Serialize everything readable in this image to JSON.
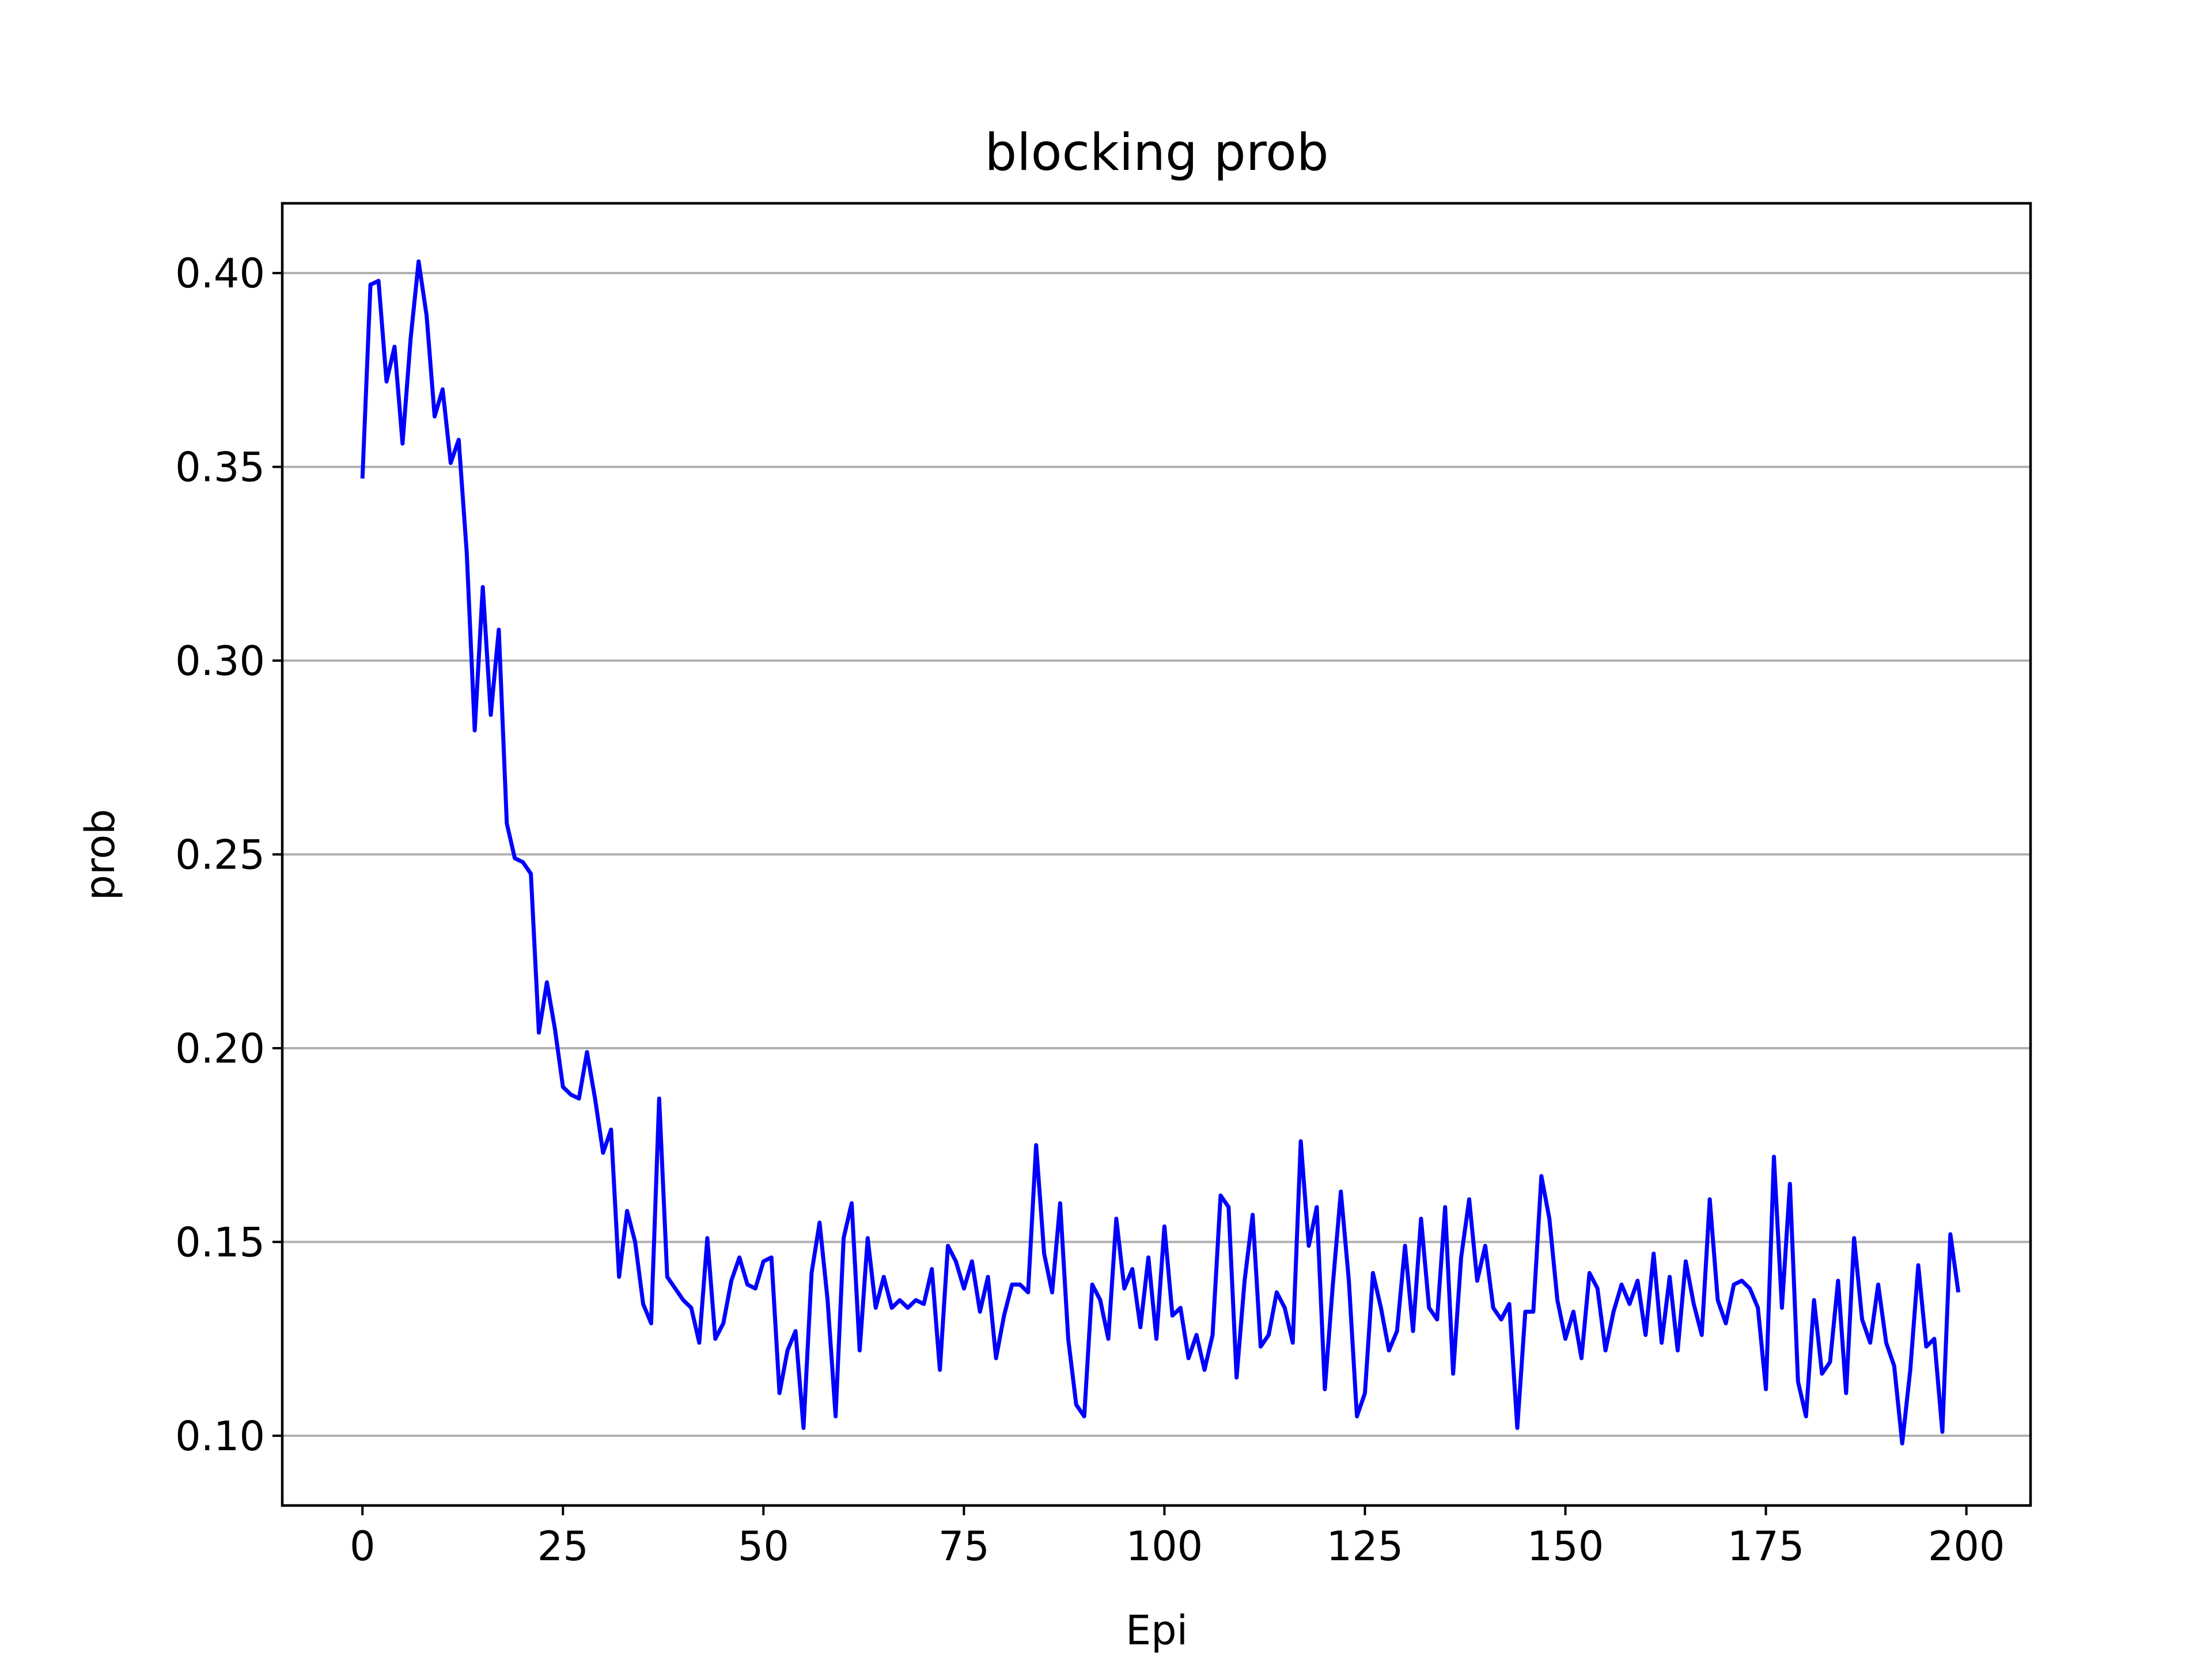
{
  "chart_data": {
    "type": "line",
    "title": "blocking prob",
    "xlabel": "Epi",
    "ylabel": "prob",
    "xlim": [
      -10,
      208
    ],
    "ylim": [
      0.082,
      0.418
    ],
    "x_ticks": [
      0,
      25,
      50,
      75,
      100,
      125,
      150,
      175,
      200
    ],
    "x_tick_labels": [
      "0",
      "25",
      "50",
      "75",
      "100",
      "125",
      "150",
      "175",
      "200"
    ],
    "y_ticks": [
      0.1,
      0.15,
      0.2,
      0.25,
      0.3,
      0.35,
      0.4
    ],
    "y_tick_labels": [
      "0.10",
      "0.15",
      "0.20",
      "0.25",
      "0.30",
      "0.35",
      "0.40"
    ],
    "grid": "horizontal",
    "series": [
      {
        "color": "#0000ff",
        "x": [
          0,
          1,
          2,
          3,
          4,
          5,
          6,
          7,
          8,
          9,
          10,
          11,
          12,
          13,
          14,
          15,
          16,
          17,
          18,
          19,
          20,
          21,
          22,
          23,
          24,
          25,
          26,
          27,
          28,
          29,
          30,
          31,
          32,
          33,
          34,
          35,
          36,
          37,
          38,
          39,
          40,
          41,
          42,
          43,
          44,
          45,
          46,
          47,
          48,
          49,
          50,
          51,
          52,
          53,
          54,
          55,
          56,
          57,
          58,
          59,
          60,
          61,
          62,
          63,
          64,
          65,
          66,
          67,
          68,
          69,
          70,
          71,
          72,
          73,
          74,
          75,
          76,
          77,
          78,
          79,
          80,
          81,
          82,
          83,
          84,
          85,
          86,
          87,
          88,
          89,
          90,
          91,
          92,
          93,
          94,
          95,
          96,
          97,
          98,
          99,
          100,
          101,
          102,
          103,
          104,
          105,
          106,
          107,
          108,
          109,
          110,
          111,
          112,
          113,
          114,
          115,
          116,
          117,
          118,
          119,
          120,
          121,
          122,
          123,
          124,
          125,
          126,
          127,
          128,
          129,
          130,
          131,
          132,
          133,
          134,
          135,
          136,
          137,
          138,
          139,
          140,
          141,
          142,
          143,
          144,
          145,
          146,
          147,
          148,
          149,
          150,
          151,
          152,
          153,
          154,
          155,
          156,
          157,
          158,
          159,
          160,
          161,
          162,
          163,
          164,
          165,
          166,
          167,
          168,
          169,
          170,
          171,
          172,
          173,
          174,
          175,
          176,
          177,
          178,
          179,
          180,
          181,
          182,
          183,
          184,
          185,
          186,
          187,
          188,
          189,
          190,
          191,
          192,
          193,
          194,
          195,
          196,
          197,
          198,
          199
        ],
        "y": [
          0.347,
          0.397,
          0.398,
          0.372,
          0.381,
          0.356,
          0.383,
          0.403,
          0.389,
          0.363,
          0.37,
          0.351,
          0.357,
          0.328,
          0.282,
          0.319,
          0.286,
          0.308,
          0.258,
          0.249,
          0.248,
          0.245,
          0.204,
          0.217,
          0.205,
          0.19,
          0.188,
          0.187,
          0.199,
          0.187,
          0.173,
          0.179,
          0.141,
          0.158,
          0.15,
          0.134,
          0.129,
          0.187,
          0.141,
          0.138,
          0.135,
          0.133,
          0.124,
          0.151,
          0.125,
          0.129,
          0.14,
          0.146,
          0.139,
          0.138,
          0.145,
          0.146,
          0.111,
          0.122,
          0.127,
          0.102,
          0.142,
          0.155,
          0.135,
          0.105,
          0.151,
          0.16,
          0.122,
          0.151,
          0.133,
          0.141,
          0.133,
          0.135,
          0.133,
          0.135,
          0.134,
          0.143,
          0.117,
          0.149,
          0.145,
          0.138,
          0.145,
          0.132,
          0.141,
          0.12,
          0.131,
          0.139,
          0.139,
          0.137,
          0.175,
          0.147,
          0.137,
          0.16,
          0.125,
          0.108,
          0.105,
          0.139,
          0.135,
          0.125,
          0.156,
          0.138,
          0.143,
          0.128,
          0.146,
          0.125,
          0.154,
          0.131,
          0.133,
          0.12,
          0.126,
          0.117,
          0.126,
          0.162,
          0.159,
          0.115,
          0.14,
          0.157,
          0.123,
          0.126,
          0.137,
          0.133,
          0.124,
          0.176,
          0.149,
          0.159,
          0.112,
          0.139,
          0.163,
          0.14,
          0.105,
          0.111,
          0.142,
          0.133,
          0.122,
          0.127,
          0.149,
          0.127,
          0.156,
          0.133,
          0.13,
          0.159,
          0.116,
          0.146,
          0.161,
          0.14,
          0.149,
          0.133,
          0.13,
          0.134,
          0.102,
          0.132,
          0.132,
          0.167,
          0.156,
          0.135,
          0.125,
          0.132,
          0.12,
          0.142,
          0.138,
          0.122,
          0.132,
          0.139,
          0.134,
          0.14,
          0.126,
          0.147,
          0.124,
          0.141,
          0.122,
          0.145,
          0.134,
          0.126,
          0.161,
          0.135,
          0.129,
          0.139,
          0.14,
          0.138,
          0.133,
          0.112,
          0.172,
          0.133,
          0.165,
          0.114,
          0.105,
          0.135,
          0.116,
          0.119,
          0.14,
          0.111,
          0.151,
          0.13,
          0.124,
          0.139,
          0.124,
          0.118,
          0.098,
          0.117,
          0.144,
          0.123,
          0.125,
          0.101,
          0.152,
          0.137
        ]
      }
    ]
  }
}
